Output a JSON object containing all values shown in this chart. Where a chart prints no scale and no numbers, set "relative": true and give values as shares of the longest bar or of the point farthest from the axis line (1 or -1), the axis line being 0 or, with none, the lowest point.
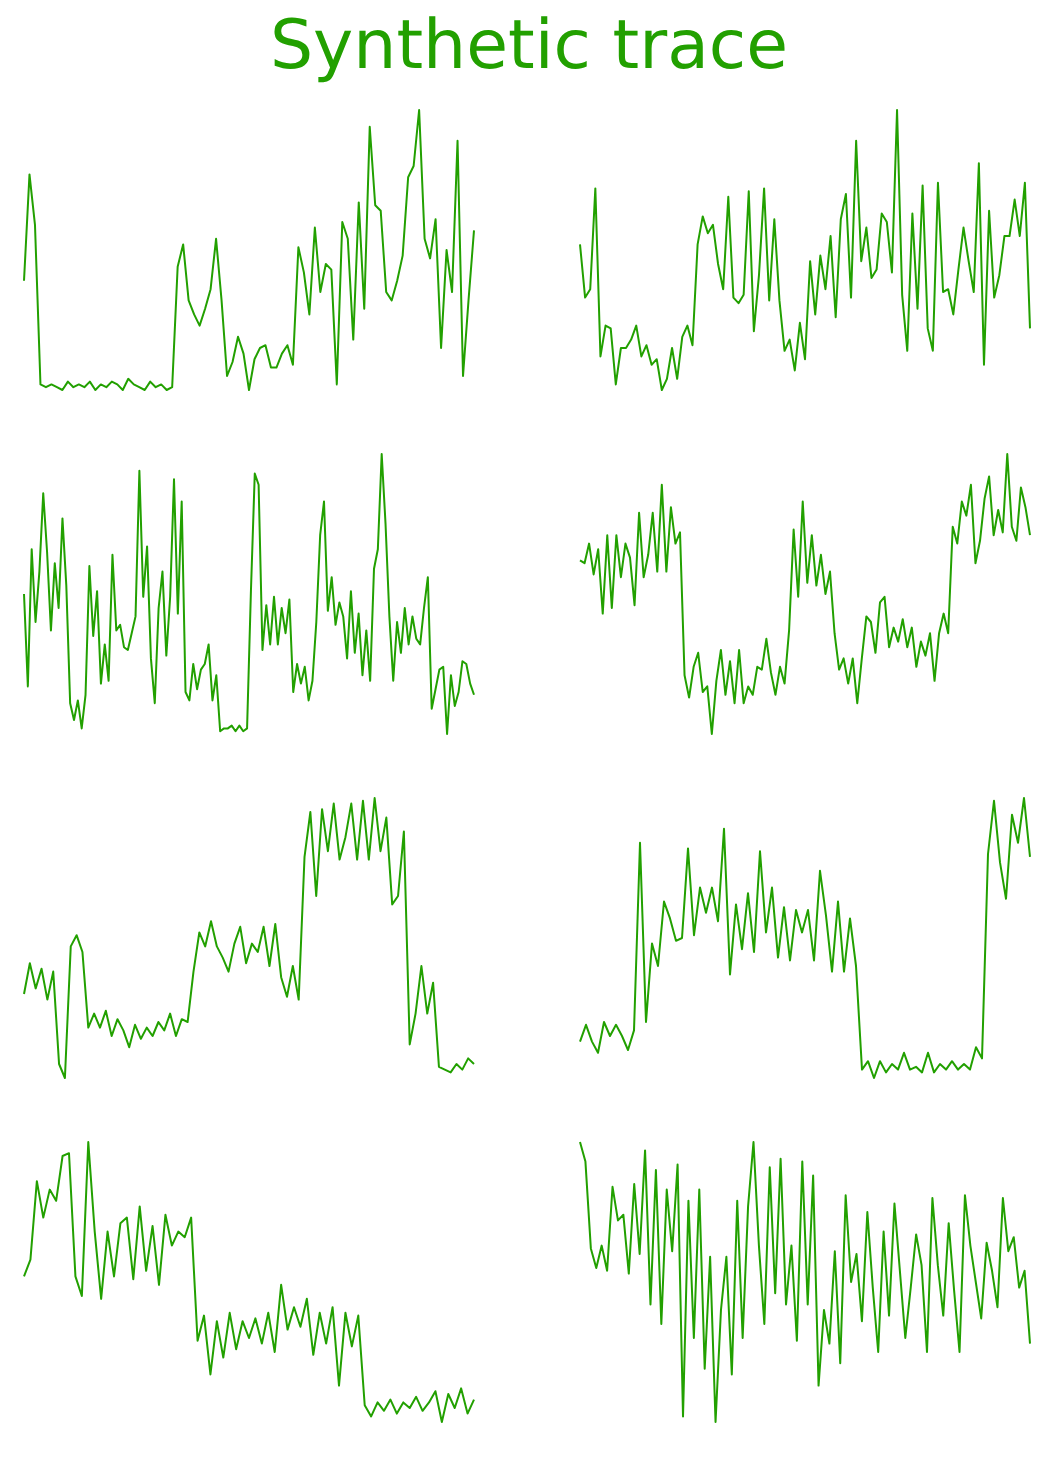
{
  "chart_data": [
    {
      "type": "line",
      "title": "Synthetic trace",
      "relative": true,
      "categories": [
        null,
        null,
        null,
        null,
        null,
        null,
        null,
        null,
        null,
        null,
        null,
        null,
        null,
        null,
        null,
        null,
        null,
        null,
        null,
        null,
        null,
        null,
        null,
        null,
        null,
        null,
        null,
        null,
        null,
        null,
        null,
        null,
        null,
        null,
        null,
        null,
        null,
        null,
        null,
        null,
        null,
        null,
        null,
        null,
        null,
        null,
        null,
        null,
        null,
        null,
        null,
        null,
        null,
        null,
        null,
        null,
        null,
        null,
        null,
        null,
        null,
        null,
        null,
        null,
        null,
        null,
        null,
        null,
        null,
        null,
        null,
        null,
        null,
        null,
        null,
        null,
        null,
        null,
        null,
        null,
        null,
        null,
        null
      ],
      "series": [
        {
          "color": "#22a000",
          "values": [
            0.39,
            0.77,
            0.59,
            0.02,
            0.01,
            0.02,
            0.01,
            0.0,
            0.03,
            0.01,
            0.02,
            0.01,
            0.03,
            0.0,
            0.02,
            0.01,
            0.03,
            0.02,
            0.0,
            0.04,
            0.02,
            0.01,
            0.0,
            0.03,
            0.01,
            0.02,
            0.0,
            0.01,
            0.44,
            0.52,
            0.32,
            0.27,
            0.23,
            0.29,
            0.36,
            0.54,
            0.32,
            0.05,
            0.1,
            0.19,
            0.13,
            0.0,
            0.11,
            0.15,
            0.16,
            0.08,
            0.08,
            0.13,
            0.16,
            0.09,
            0.51,
            0.42,
            0.27,
            0.58,
            0.35,
            0.45,
            0.43,
            0.02,
            0.6,
            0.54,
            0.18,
            0.67,
            0.29,
            0.94,
            0.66,
            0.64,
            0.35,
            0.32,
            0.39,
            0.48,
            0.76,
            0.8,
            1.0,
            0.54,
            0.47,
            0.61,
            0.15,
            0.5,
            0.35,
            0.89,
            0.05,
            0.32,
            0.57
          ]
        }
      ]
    },
    {
      "type": "line",
      "relative": true,
      "categories": [
        null,
        null,
        null,
        null,
        null,
        null,
        null,
        null,
        null,
        null,
        null,
        null,
        null,
        null,
        null,
        null,
        null,
        null,
        null,
        null,
        null,
        null,
        null,
        null,
        null,
        null,
        null,
        null,
        null,
        null,
        null,
        null,
        null,
        null,
        null,
        null,
        null,
        null,
        null,
        null,
        null,
        null,
        null,
        null,
        null,
        null,
        null,
        null,
        null,
        null,
        null,
        null,
        null,
        null,
        null,
        null,
        null,
        null,
        null,
        null,
        null,
        null,
        null,
        null,
        null,
        null,
        null,
        null,
        null,
        null,
        null,
        null,
        null,
        null,
        null,
        null,
        null,
        null,
        null,
        null,
        null,
        null,
        null,
        null,
        null,
        null,
        null,
        null,
        null
      ],
      "series": [
        {
          "color": "#22a000",
          "values": [
            0.52,
            0.33,
            0.36,
            0.72,
            0.12,
            0.23,
            0.22,
            0.02,
            0.15,
            0.15,
            0.18,
            0.23,
            0.12,
            0.16,
            0.09,
            0.11,
            0.0,
            0.04,
            0.15,
            0.04,
            0.19,
            0.23,
            0.16,
            0.52,
            0.62,
            0.56,
            0.59,
            0.45,
            0.36,
            0.69,
            0.33,
            0.31,
            0.34,
            0.71,
            0.21,
            0.41,
            0.72,
            0.32,
            0.61,
            0.32,
            0.14,
            0.18,
            0.07,
            0.24,
            0.11,
            0.46,
            0.27,
            0.48,
            0.36,
            0.55,
            0.26,
            0.61,
            0.7,
            0.33,
            0.89,
            0.46,
            0.58,
            0.4,
            0.43,
            0.63,
            0.6,
            0.42,
            1.0,
            0.34,
            0.14,
            0.63,
            0.29,
            0.73,
            0.22,
            0.14,
            0.74,
            0.35,
            0.36,
            0.27,
            0.43,
            0.58,
            0.46,
            0.35,
            0.81,
            0.09,
            0.64,
            0.33,
            0.41,
            0.55,
            0.55,
            0.68,
            0.55,
            0.74,
            0.22
          ]
        }
      ]
    },
    {
      "type": "line",
      "relative": true,
      "categories": [
        null,
        null,
        null,
        null,
        null,
        null,
        null,
        null,
        null,
        null,
        null,
        null,
        null,
        null,
        null,
        null,
        null,
        null,
        null,
        null,
        null,
        null,
        null,
        null,
        null,
        null,
        null,
        null,
        null,
        null,
        null,
        null,
        null,
        null,
        null,
        null,
        null,
        null,
        null,
        null,
        null,
        null,
        null,
        null,
        null,
        null,
        null,
        null,
        null,
        null,
        null,
        null,
        null,
        null,
        null,
        null,
        null,
        null,
        null,
        null,
        null,
        null,
        null,
        null,
        null,
        null,
        null,
        null,
        null,
        null,
        null,
        null,
        null,
        null,
        null,
        null,
        null,
        null,
        null,
        null,
        null,
        null,
        null,
        null,
        null,
        null,
        null,
        null,
        null,
        null,
        null,
        null,
        null,
        null,
        null,
        null,
        null,
        null,
        null,
        null,
        null,
        null,
        null,
        null,
        null,
        null,
        null,
        null,
        null,
        null,
        null,
        null,
        null,
        null,
        null,
        null,
        null,
        null
      ],
      "series": [
        {
          "color": "#22a000",
          "values": [
            0.5,
            0.17,
            0.66,
            0.4,
            0.58,
            0.86,
            0.65,
            0.37,
            0.61,
            0.45,
            0.77,
            0.53,
            0.11,
            0.05,
            0.12,
            0.02,
            0.14,
            0.6,
            0.35,
            0.51,
            0.18,
            0.32,
            0.19,
            0.64,
            0.37,
            0.39,
            0.31,
            0.3,
            0.36,
            0.42,
            0.94,
            0.49,
            0.67,
            0.27,
            0.11,
            0.45,
            0.58,
            0.28,
            0.49,
            0.91,
            0.43,
            0.83,
            0.15,
            0.12,
            0.25,
            0.16,
            0.23,
            0.25,
            0.32,
            0.12,
            0.21,
            0.01,
            0.02,
            0.02,
            0.03,
            0.01,
            0.03,
            0.01,
            0.02,
            0.51,
            0.93,
            0.89,
            0.3,
            0.46,
            0.32,
            0.49,
            0.32,
            0.45,
            0.36,
            0.48,
            0.15,
            0.25,
            0.18,
            0.24,
            0.12,
            0.19,
            0.4,
            0.71,
            0.83,
            0.44,
            0.56,
            0.39,
            0.47,
            0.42,
            0.27,
            0.51,
            0.29,
            0.43,
            0.21,
            0.37,
            0.19,
            0.59,
            0.66,
            1.0,
            0.75,
            0.42,
            0.19,
            0.4,
            0.29,
            0.45,
            0.32,
            0.42,
            0.34,
            0.32,
            0.45,
            0.56,
            0.09,
            0.16,
            0.23,
            0.24,
            0.0,
            0.21,
            0.1,
            0.15,
            0.26,
            0.25,
            0.18,
            0.14
          ]
        }
      ]
    },
    {
      "type": "line",
      "relative": true,
      "categories": [
        null,
        null,
        null,
        null,
        null,
        null,
        null,
        null,
        null,
        null,
        null,
        null,
        null,
        null,
        null,
        null,
        null,
        null,
        null,
        null,
        null,
        null,
        null,
        null,
        null,
        null,
        null,
        null,
        null,
        null,
        null,
        null,
        null,
        null,
        null,
        null,
        null,
        null,
        null,
        null,
        null,
        null,
        null,
        null,
        null,
        null,
        null,
        null,
        null,
        null,
        null,
        null,
        null,
        null,
        null,
        null,
        null,
        null,
        null,
        null,
        null,
        null,
        null,
        null,
        null,
        null,
        null,
        null,
        null,
        null,
        null,
        null,
        null,
        null,
        null,
        null,
        null,
        null,
        null,
        null,
        null,
        null,
        null,
        null,
        null,
        null,
        null,
        null,
        null,
        null,
        null,
        null,
        null,
        null,
        null,
        null,
        null,
        null,
        null,
        null
      ],
      "series": [
        {
          "color": "#22a000",
          "values": [
            0.62,
            0.61,
            0.68,
            0.57,
            0.66,
            0.43,
            0.71,
            0.45,
            0.71,
            0.56,
            0.68,
            0.63,
            0.46,
            0.79,
            0.56,
            0.64,
            0.79,
            0.58,
            0.89,
            0.58,
            0.81,
            0.68,
            0.72,
            0.21,
            0.13,
            0.24,
            0.29,
            0.15,
            0.17,
            0.0,
            0.19,
            0.3,
            0.14,
            0.26,
            0.11,
            0.3,
            0.11,
            0.17,
            0.14,
            0.24,
            0.23,
            0.34,
            0.22,
            0.14,
            0.24,
            0.18,
            0.37,
            0.73,
            0.49,
            0.83,
            0.54,
            0.71,
            0.53,
            0.64,
            0.5,
            0.58,
            0.36,
            0.23,
            0.27,
            0.18,
            0.27,
            0.11,
            0.27,
            0.42,
            0.4,
            0.29,
            0.47,
            0.49,
            0.31,
            0.38,
            0.33,
            0.41,
            0.31,
            0.38,
            0.24,
            0.33,
            0.28,
            0.36,
            0.19,
            0.36,
            0.43,
            0.36,
            0.74,
            0.68,
            0.83,
            0.78,
            0.89,
            0.61,
            0.69,
            0.84,
            0.92,
            0.71,
            0.8,
            0.72,
            1.0,
            0.74,
            0.69,
            0.88,
            0.81,
            0.71
          ]
        }
      ]
    },
    {
      "type": "line",
      "relative": true,
      "categories": [
        null,
        null,
        null,
        null,
        null,
        null,
        null,
        null,
        null,
        null,
        null,
        null,
        null,
        null,
        null,
        null,
        null,
        null,
        null,
        null,
        null,
        null,
        null,
        null,
        null,
        null,
        null,
        null,
        null,
        null,
        null,
        null,
        null,
        null,
        null,
        null,
        null,
        null,
        null,
        null,
        null,
        null,
        null,
        null,
        null,
        null,
        null,
        null,
        null,
        null,
        null,
        null,
        null,
        null,
        null,
        null,
        null,
        null,
        null,
        null,
        null,
        null,
        null,
        null,
        null,
        null,
        null,
        null,
        null,
        null,
        null,
        null,
        null,
        null,
        null,
        null,
        null,
        null
      ],
      "series": [
        {
          "color": "#22a000",
          "values": [
            0.3,
            0.41,
            0.32,
            0.39,
            0.28,
            0.38,
            0.05,
            0.0,
            0.47,
            0.51,
            0.45,
            0.18,
            0.23,
            0.18,
            0.24,
            0.15,
            0.21,
            0.17,
            0.11,
            0.19,
            0.14,
            0.18,
            0.15,
            0.2,
            0.17,
            0.23,
            0.15,
            0.21,
            0.2,
            0.38,
            0.52,
            0.47,
            0.56,
            0.47,
            0.43,
            0.38,
            0.48,
            0.54,
            0.41,
            0.48,
            0.45,
            0.54,
            0.4,
            0.55,
            0.36,
            0.29,
            0.4,
            0.28,
            0.79,
            0.95,
            0.65,
            0.96,
            0.81,
            0.98,
            0.78,
            0.86,
            0.98,
            0.78,
            0.99,
            0.78,
            1.0,
            0.81,
            0.93,
            0.62,
            0.65,
            0.88,
            0.12,
            0.23,
            0.4,
            0.23,
            0.34,
            0.04,
            0.03,
            0.02,
            0.05,
            0.03,
            0.07,
            0.05
          ]
        }
      ]
    },
    {
      "type": "line",
      "relative": true,
      "categories": [
        null,
        null,
        null,
        null,
        null,
        null,
        null,
        null,
        null,
        null,
        null,
        null,
        null,
        null,
        null,
        null,
        null,
        null,
        null,
        null,
        null,
        null,
        null,
        null,
        null,
        null,
        null,
        null,
        null,
        null,
        null,
        null,
        null,
        null,
        null,
        null,
        null,
        null,
        null,
        null,
        null,
        null,
        null,
        null,
        null,
        null,
        null,
        null,
        null,
        null,
        null,
        null,
        null,
        null,
        null,
        null,
        null,
        null,
        null,
        null,
        null,
        null,
        null,
        null,
        null,
        null,
        null,
        null,
        null,
        null,
        null,
        null,
        null,
        null,
        null,
        null
      ],
      "series": [
        {
          "color": "#22a000",
          "values": [
            0.13,
            0.19,
            0.13,
            0.09,
            0.2,
            0.15,
            0.19,
            0.15,
            0.1,
            0.17,
            0.84,
            0.2,
            0.48,
            0.4,
            0.63,
            0.57,
            0.49,
            0.5,
            0.82,
            0.51,
            0.68,
            0.59,
            0.68,
            0.56,
            0.89,
            0.37,
            0.62,
            0.46,
            0.66,
            0.45,
            0.81,
            0.52,
            0.68,
            0.43,
            0.61,
            0.42,
            0.6,
            0.52,
            0.6,
            0.42,
            0.74,
            0.58,
            0.38,
            0.63,
            0.38,
            0.57,
            0.4,
            0.03,
            0.06,
            0.0,
            0.06,
            0.02,
            0.05,
            0.03,
            0.09,
            0.03,
            0.04,
            0.02,
            0.09,
            0.02,
            0.05,
            0.03,
            0.06,
            0.03,
            0.05,
            0.03,
            0.11,
            0.07,
            0.8,
            0.99,
            0.77,
            0.64,
            0.94,
            0.84,
            1.0,
            0.79
          ]
        }
      ]
    },
    {
      "type": "line",
      "relative": true,
      "categories": [
        null,
        null,
        null,
        null,
        null,
        null,
        null,
        null,
        null,
        null,
        null,
        null,
        null,
        null,
        null,
        null,
        null,
        null,
        null,
        null,
        null,
        null,
        null,
        null,
        null,
        null,
        null,
        null,
        null,
        null,
        null,
        null,
        null,
        null,
        null,
        null,
        null,
        null,
        null,
        null,
        null,
        null,
        null,
        null,
        null,
        null,
        null,
        null,
        null,
        null,
        null,
        null,
        null,
        null,
        null,
        null,
        null,
        null,
        null,
        null,
        null,
        null,
        null,
        null,
        null,
        null,
        null,
        null,
        null,
        null,
        null
      ],
      "series": [
        {
          "color": "#22a000",
          "values": [
            0.52,
            0.58,
            0.86,
            0.73,
            0.83,
            0.79,
            0.95,
            0.96,
            0.52,
            0.45,
            1.0,
            0.68,
            0.44,
            0.68,
            0.52,
            0.71,
            0.73,
            0.51,
            0.77,
            0.54,
            0.7,
            0.49,
            0.74,
            0.63,
            0.68,
            0.66,
            0.73,
            0.29,
            0.38,
            0.17,
            0.36,
            0.23,
            0.39,
            0.26,
            0.36,
            0.3,
            0.37,
            0.28,
            0.39,
            0.25,
            0.49,
            0.33,
            0.41,
            0.34,
            0.44,
            0.24,
            0.39,
            0.28,
            0.41,
            0.13,
            0.39,
            0.27,
            0.38,
            0.06,
            0.02,
            0.07,
            0.04,
            0.08,
            0.03,
            0.07,
            0.05,
            0.09,
            0.04,
            0.07,
            0.11,
            0.0,
            0.1,
            0.05,
            0.12,
            0.03,
            0.08
          ]
        }
      ]
    },
    {
      "type": "line",
      "relative": true,
      "categories": [
        null,
        null,
        null,
        null,
        null,
        null,
        null,
        null,
        null,
        null,
        null,
        null,
        null,
        null,
        null,
        null,
        null,
        null,
        null,
        null,
        null,
        null,
        null,
        null,
        null,
        null,
        null,
        null,
        null,
        null,
        null,
        null,
        null,
        null,
        null,
        null,
        null,
        null,
        null,
        null,
        null,
        null,
        null,
        null,
        null,
        null,
        null,
        null,
        null,
        null,
        null,
        null,
        null,
        null,
        null,
        null,
        null,
        null,
        null,
        null,
        null,
        null,
        null,
        null,
        null,
        null,
        null,
        null,
        null,
        null,
        null,
        null,
        null,
        null,
        null,
        null,
        null,
        null,
        null,
        null,
        null,
        null,
        null,
        null
      ],
      "series": [
        {
          "color": "#22a000",
          "values": [
            1.0,
            0.93,
            0.62,
            0.55,
            0.63,
            0.54,
            0.84,
            0.72,
            0.74,
            0.53,
            0.85,
            0.6,
            0.97,
            0.42,
            0.9,
            0.35,
            0.83,
            0.61,
            0.92,
            0.02,
            0.79,
            0.3,
            0.83,
            0.19,
            0.59,
            0.0,
            0.4,
            0.59,
            0.17,
            0.79,
            0.3,
            0.77,
            1.0,
            0.63,
            0.35,
            0.91,
            0.46,
            0.94,
            0.42,
            0.63,
            0.29,
            0.93,
            0.42,
            0.88,
            0.13,
            0.4,
            0.28,
            0.61,
            0.21,
            0.81,
            0.5,
            0.6,
            0.36,
            0.75,
            0.48,
            0.25,
            0.68,
            0.38,
            0.78,
            0.54,
            0.3,
            0.48,
            0.67,
            0.56,
            0.25,
            0.8,
            0.56,
            0.38,
            0.71,
            0.47,
            0.25,
            0.81,
            0.63,
            0.5,
            0.37,
            0.64,
            0.54,
            0.41,
            0.8,
            0.61,
            0.66,
            0.48,
            0.54,
            0.28
          ]
        }
      ]
    }
  ]
}
